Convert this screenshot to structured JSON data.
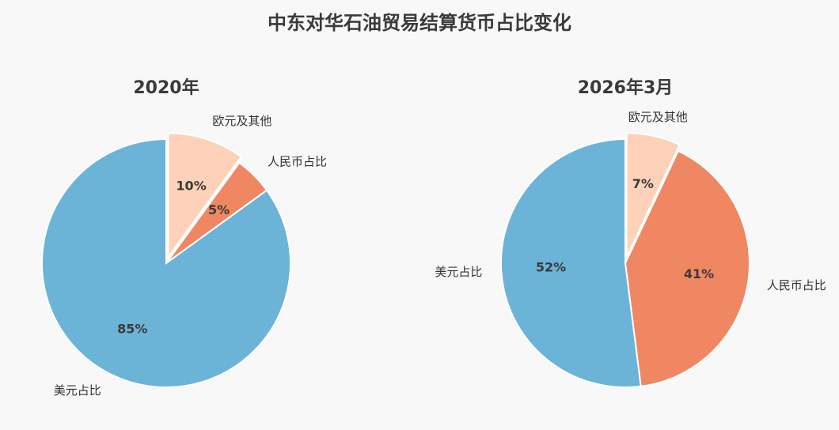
{
  "title": "中东对华石油贸易结算货币占比变化",
  "chart_data": [
    {
      "type": "pie",
      "title": "2020年",
      "categories": [
        "欧元及其他",
        "人民币占比",
        "美元占比"
      ],
      "values": [
        10,
        5,
        85
      ],
      "value_labels": [
        "10%",
        "5%",
        "85%"
      ],
      "colors": [
        "#fdd2b8",
        "#f08763",
        "#6cb3d8"
      ]
    },
    {
      "type": "pie",
      "title": "2026年3月",
      "categories": [
        "欧元及其他",
        "人民币占比",
        "美元占比"
      ],
      "values": [
        7,
        41,
        52
      ],
      "value_labels": [
        "7%",
        "41%",
        "52%"
      ],
      "colors": [
        "#fdd2b8",
        "#f08763",
        "#6cb3d8"
      ]
    }
  ]
}
